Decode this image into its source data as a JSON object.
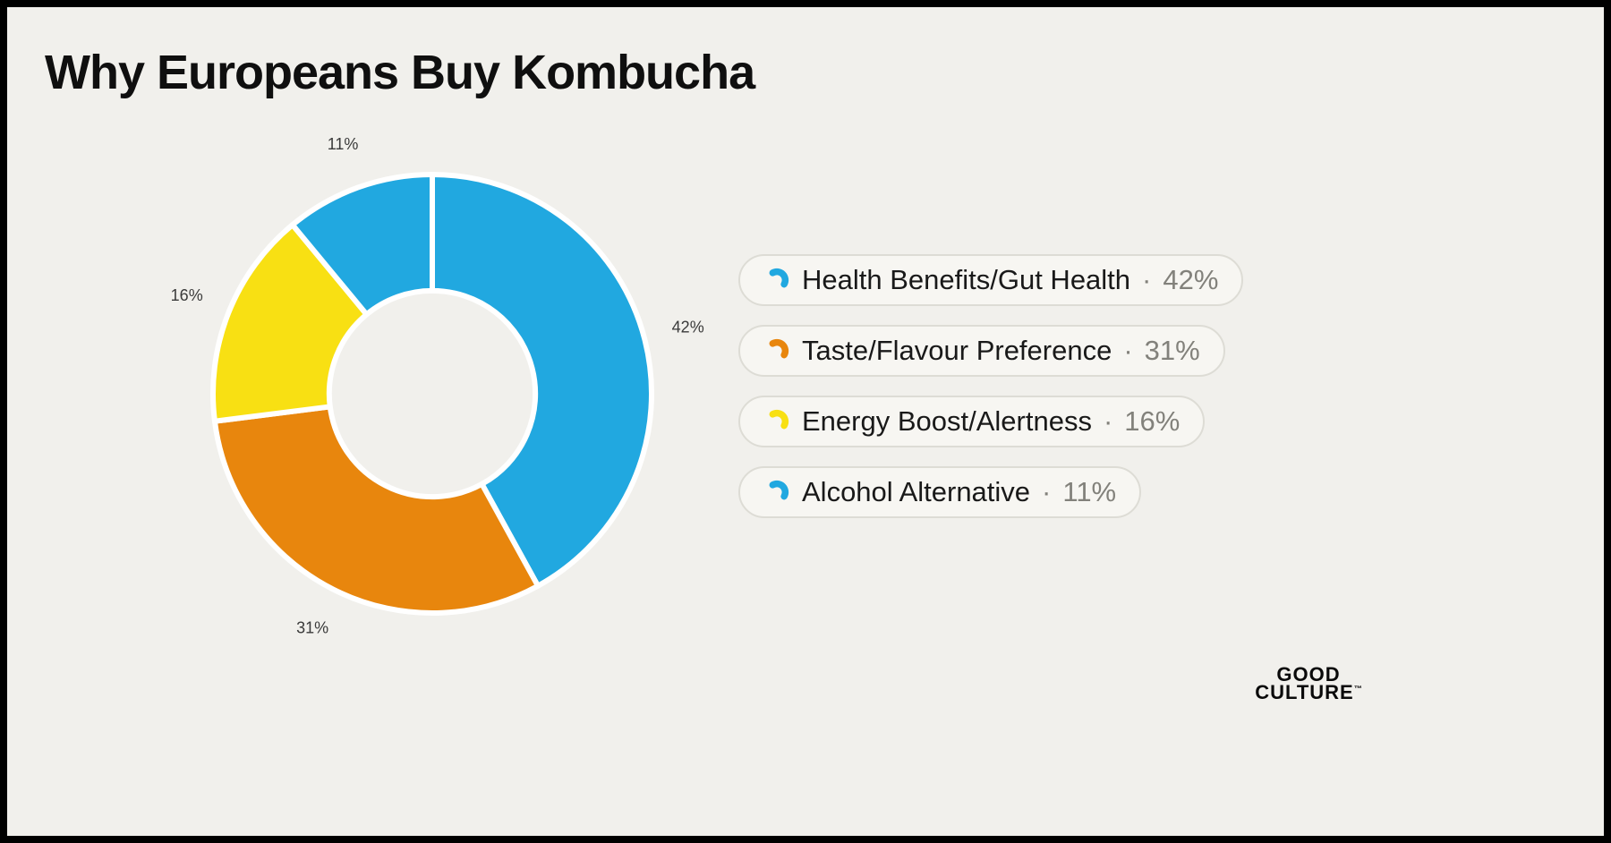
{
  "page": {
    "background_color": "#f1f0ec",
    "border_color": "#000000"
  },
  "title": "Why Europeans Buy Kombucha",
  "legend_separator": "·",
  "logo": {
    "line1": "GOOD",
    "line2": "CULTURE",
    "trademark": "™"
  },
  "chart_data": {
    "type": "pie",
    "variant": "donut",
    "title": "Why Europeans Buy Kombucha",
    "categories": [
      "Health Benefits/Gut Health",
      "Taste/Flavour Preference",
      "Energy Boost/Alertness",
      "Alcohol Alternative"
    ],
    "values": [
      42,
      31,
      16,
      11
    ],
    "unit": "%",
    "colors": [
      "#21a8e0",
      "#e8860d",
      "#f8e013",
      "#21a8e0"
    ],
    "slice_labels": [
      "42%",
      "31%",
      "16%",
      "11%"
    ],
    "start_angle_deg": 0,
    "direction": "clockwise",
    "donut_hole_ratio": 0.47,
    "gap_color": "#ffffff",
    "legend_position": "right",
    "legend": [
      {
        "label": "Health Benefits/Gut Health",
        "value_text": "42%"
      },
      {
        "label": "Taste/Flavour Preference",
        "value_text": "31%"
      },
      {
        "label": "Energy Boost/Alertness",
        "value_text": "16%"
      },
      {
        "label": "Alcohol Alternative",
        "value_text": "11%"
      }
    ]
  }
}
